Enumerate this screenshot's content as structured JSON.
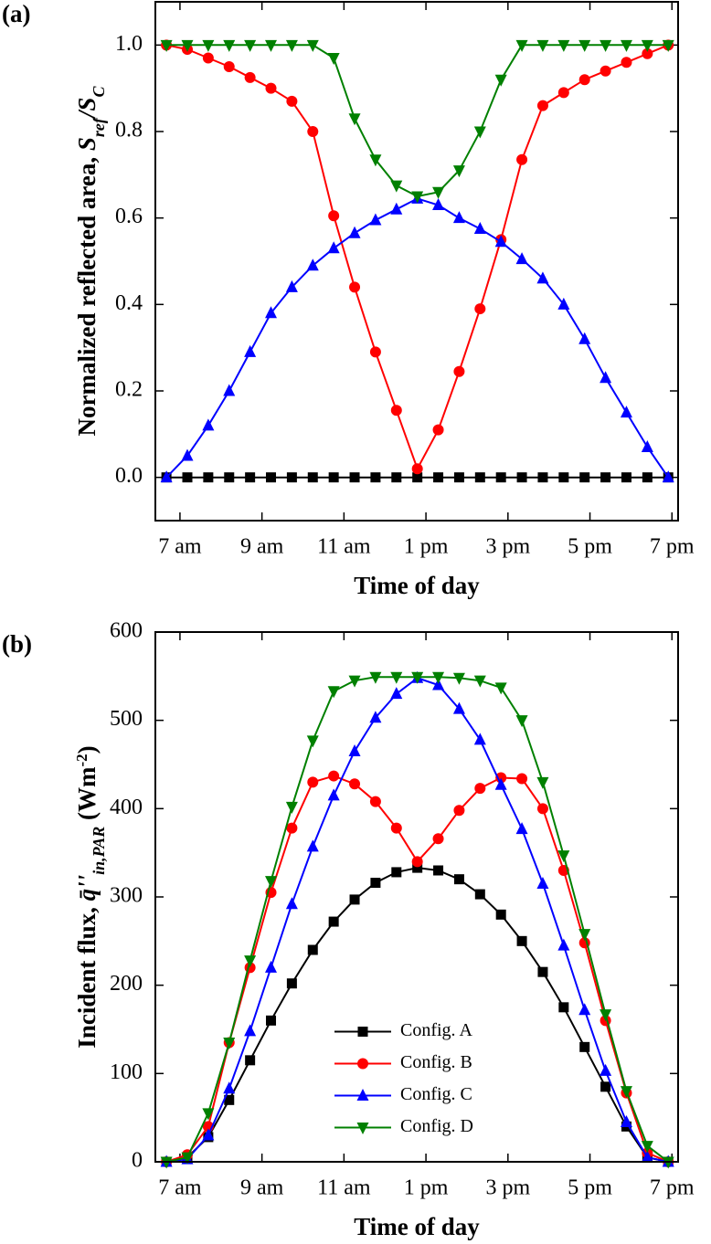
{
  "chart_data": [
    {
      "type": "line",
      "panel_label": "(a)",
      "xlabel": "Time of day",
      "ylabel": [
        {
          "text": "Normalized reflected area, ",
          "style": "normal"
        },
        {
          "text": "S",
          "style": "italic"
        },
        {
          "text": "ref",
          "style": "sub"
        },
        {
          "text": "/",
          "style": "italic"
        },
        {
          "text": "S",
          "style": "italic"
        },
        {
          "text": "C",
          "style": "sub"
        }
      ],
      "x": [
        6.67,
        7.18,
        7.69,
        8.2,
        8.71,
        9.22,
        9.73,
        10.24,
        10.75,
        11.26,
        11.77,
        12.28,
        12.79,
        13.3,
        13.81,
        14.32,
        14.83,
        15.34,
        15.85,
        16.36,
        16.87,
        17.38,
        17.89,
        18.4,
        18.91
      ],
      "xlim": [
        6.4,
        19.15
      ],
      "xticks": [
        {
          "value": 7,
          "label": "7 am"
        },
        {
          "value": 9,
          "label": "9 am"
        },
        {
          "value": 11,
          "label": "11 am"
        },
        {
          "value": 13,
          "label": "1 pm"
        },
        {
          "value": 15,
          "label": "3 pm"
        },
        {
          "value": 17,
          "label": "5 pm"
        },
        {
          "value": 19,
          "label": "7 pm"
        }
      ],
      "ylim": [
        -0.1,
        1.1
      ],
      "yticks": [
        {
          "value": 0,
          "label": "0.0"
        },
        0.2,
        0.4,
        0.6,
        0.8,
        {
          "value": 1,
          "label": "1.0"
        }
      ],
      "series": [
        {
          "color": "#000000",
          "marker": "square",
          "values": [
            0,
            0,
            0,
            0,
            0,
            0,
            0,
            0,
            0,
            0,
            0,
            0,
            0,
            0,
            0,
            0,
            0,
            0,
            0,
            0,
            0,
            0,
            0,
            0,
            0
          ]
        },
        {
          "color": "#ff0000",
          "marker": "circle",
          "values": [
            1.0,
            0.99,
            0.97,
            0.95,
            0.925,
            0.9,
            0.87,
            0.8,
            0.605,
            0.44,
            0.29,
            0.155,
            0.02,
            0.11,
            0.245,
            0.39,
            0.55,
            0.735,
            0.86,
            0.89,
            0.92,
            0.94,
            0.96,
            0.98,
            1.0
          ]
        },
        {
          "color": "#0000ff",
          "marker": "triangle-up",
          "values": [
            0,
            0.05,
            0.12,
            0.2,
            0.29,
            0.38,
            0.44,
            0.49,
            0.53,
            0.565,
            0.595,
            0.62,
            0.645,
            0.63,
            0.6,
            0.575,
            0.545,
            0.505,
            0.46,
            0.4,
            0.32,
            0.23,
            0.15,
            0.07,
            0
          ]
        },
        {
          "color": "#008000",
          "marker": "triangle-down",
          "values": [
            1,
            1,
            1,
            1,
            1,
            1,
            1,
            1,
            0.97,
            0.83,
            0.735,
            0.675,
            0.65,
            0.66,
            0.71,
            0.8,
            0.92,
            1,
            1,
            1,
            1,
            1,
            1,
            1,
            1
          ]
        }
      ]
    },
    {
      "type": "line",
      "panel_label": "(b)",
      "xlabel": "Time of day",
      "ylabel": [
        {
          "text": "Incident flux, ",
          "style": "normal"
        },
        {
          "text": "q̄''",
          "style": "italic"
        },
        {
          "text": "in,PAR",
          "style": "sub"
        },
        {
          "text": " (Wm",
          "style": "normal"
        },
        {
          "text": "-2",
          "style": "sup"
        },
        {
          "text": ")",
          "style": "normal"
        }
      ],
      "x": [
        6.67,
        7.18,
        7.69,
        8.2,
        8.71,
        9.22,
        9.73,
        10.24,
        10.75,
        11.26,
        11.77,
        12.28,
        12.79,
        13.3,
        13.81,
        14.32,
        14.83,
        15.34,
        15.85,
        16.36,
        16.87,
        17.38,
        17.89,
        18.4,
        18.91
      ],
      "xlim": [
        6.4,
        19.15
      ],
      "xticks": [
        {
          "value": 7,
          "label": "7 am"
        },
        {
          "value": 9,
          "label": "9 am"
        },
        {
          "value": 11,
          "label": "11 am"
        },
        {
          "value": 13,
          "label": "1 pm"
        },
        {
          "value": 15,
          "label": "3 pm"
        },
        {
          "value": 17,
          "label": "5 pm"
        },
        {
          "value": 19,
          "label": "7 pm"
        }
      ],
      "ylim": [
        0,
        600
      ],
      "yticks": [
        0,
        100,
        200,
        300,
        400,
        500,
        600
      ],
      "legend": "lower center",
      "series": [
        {
          "name": "Config. A",
          "color": "#000000",
          "marker": "square",
          "values": [
            0,
            5,
            28,
            70,
            115,
            160,
            202,
            240,
            272,
            297,
            316,
            328,
            333,
            330,
            320,
            303,
            280,
            250,
            215,
            175,
            130,
            85,
            40,
            5,
            0
          ]
        },
        {
          "name": "Config. B",
          "color": "#ff0000",
          "marker": "circle",
          "values": [
            0,
            8,
            40,
            135,
            220,
            305,
            378,
            430,
            437,
            428,
            408,
            378,
            340,
            366,
            398,
            423,
            435,
            434,
            400,
            330,
            248,
            160,
            78,
            10,
            0
          ]
        },
        {
          "name": "Config. C",
          "color": "#0000ff",
          "marker": "triangle-up",
          "values": [
            0,
            3,
            30,
            83,
            148,
            220,
            292,
            357,
            415,
            465,
            503,
            530,
            548,
            540,
            513,
            478,
            427,
            377,
            315,
            245,
            172,
            103,
            45,
            5,
            0
          ]
        },
        {
          "name": "Config. D",
          "color": "#008000",
          "marker": "triangle-down",
          "values": [
            0,
            5,
            55,
            135,
            228,
            318,
            402,
            477,
            533,
            545,
            549,
            549,
            549,
            549,
            548,
            545,
            537,
            500,
            430,
            347,
            258,
            167,
            80,
            18,
            0
          ]
        }
      ]
    }
  ]
}
